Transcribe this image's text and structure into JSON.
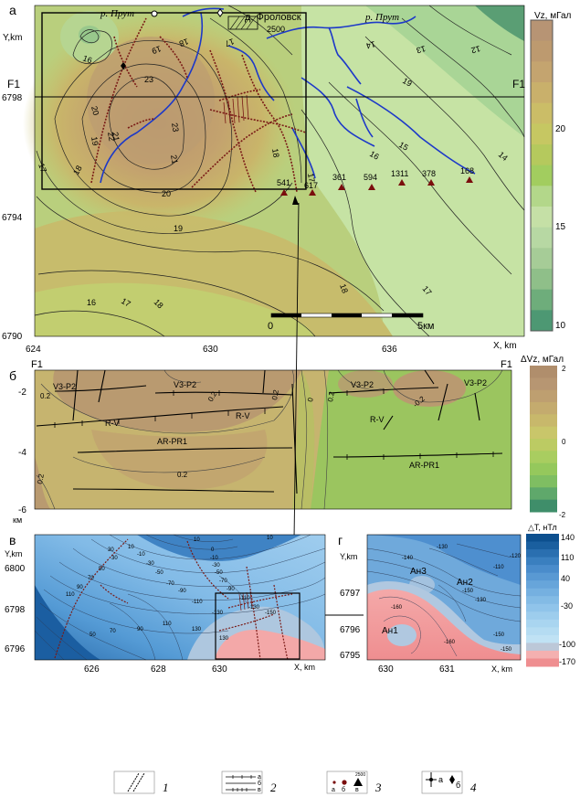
{
  "panel_a": {
    "letter": "а",
    "y_axis_label": "Y,km",
    "x_axis_label": "X, km",
    "x_ticks": [
      "624",
      "630",
      "636"
    ],
    "y_ticks": [
      "6798",
      "6794",
      "6790"
    ],
    "profile_start": "F1",
    "profile_end": "F1",
    "places": {
      "river_left": "р. Прут",
      "river_right": "р. Прут",
      "village": "д. Фроловск",
      "elevation": "2500"
    },
    "wells": [
      "541",
      "617",
      "361",
      "594",
      "1311",
      "378",
      "168"
    ],
    "contour_labels": [
      "16",
      "19",
      "18",
      "17",
      "14",
      "13",
      "12",
      "23",
      "20",
      "19",
      "21",
      "22",
      "23",
      "21",
      "20",
      "18",
      "19",
      "17",
      "16",
      "15",
      "14",
      "18",
      "17",
      "16",
      "17",
      "18",
      "19",
      "18",
      "17"
    ],
    "scale_start": "0",
    "scale_end": "5км",
    "legend": {
      "title": "Vz, мГал",
      "ticks": [
        "20",
        "15",
        "10"
      ],
      "colors": [
        "#b79474",
        "#bd9a6f",
        "#c4a46f",
        "#c9b06b",
        "#cbbd67",
        "#c6c762",
        "#b5c95d",
        "#a2cd5f",
        "#b3d78a",
        "#c5e0a6",
        "#b7d8a3",
        "#a6cc97",
        "#8fbf89",
        "#6ead7b",
        "#4d9873"
      ]
    }
  },
  "panel_b": {
    "letter": "б",
    "profile_start": "F1",
    "profile_end": "F1",
    "y_ticks": [
      "-2",
      "-4",
      "-6"
    ],
    "y_unit": "км",
    "formations": [
      "V3-P2",
      "V3-P2",
      "R-V",
      "R-V",
      "AR-PR1",
      "V3-P2",
      "V3-P2",
      "R-V",
      "AR-PR1"
    ],
    "contour_labels": [
      "0.2",
      "0.2",
      "0.2",
      "0.2",
      "0",
      "0.2",
      "-0.2",
      "0.2"
    ],
    "legend": {
      "title": "ΔVz, мГал",
      "ticks": [
        "2",
        "0",
        "-2"
      ]
    }
  },
  "panel_v": {
    "letter": "в",
    "y_axis_label": "Y,km",
    "x_axis_label": "X, km",
    "x_ticks": [
      "626",
      "628",
      "630"
    ],
    "y_ticks": [
      "6800",
      "6798",
      "6796"
    ],
    "contour_labels": [
      "30",
      "10",
      "10",
      "0",
      "-10",
      "-30",
      "-50",
      "-70",
      "-90",
      "-110",
      "-130",
      "-150",
      "-130",
      "-110",
      "-90",
      "-70",
      "-50",
      "-30",
      "-10",
      "10",
      "30",
      "50",
      "70",
      "90",
      "110",
      "130",
      "130",
      "110",
      "90",
      "70",
      "50"
    ]
  },
  "panel_g": {
    "letter": "г",
    "y_axis_label": "Y,km",
    "x_axis_label": "X, km",
    "x_ticks": [
      "630",
      "631"
    ],
    "y_ticks": [
      "6797",
      "6796",
      "6795"
    ],
    "anomalies": [
      "Ан3",
      "Ан2",
      "Ан1"
    ],
    "contour_labels": [
      "-130",
      "-140",
      "-150",
      "-150",
      "-160",
      "-160",
      "-120",
      "-110",
      "-130",
      "-150"
    ],
    "legend": {
      "title": "△T, нТл",
      "ticks": [
        "140",
        "110",
        "40",
        "-30",
        "-100",
        "-170"
      ]
    }
  },
  "bottom_legend": {
    "items": [
      "1",
      "2",
      "3",
      "4"
    ],
    "sub_2": [
      "а",
      "б",
      "в"
    ],
    "sub_3": [
      "а",
      "б",
      "в"
    ],
    "sub_3_value": "2500",
    "sub_4": [
      "а",
      "б"
    ]
  }
}
